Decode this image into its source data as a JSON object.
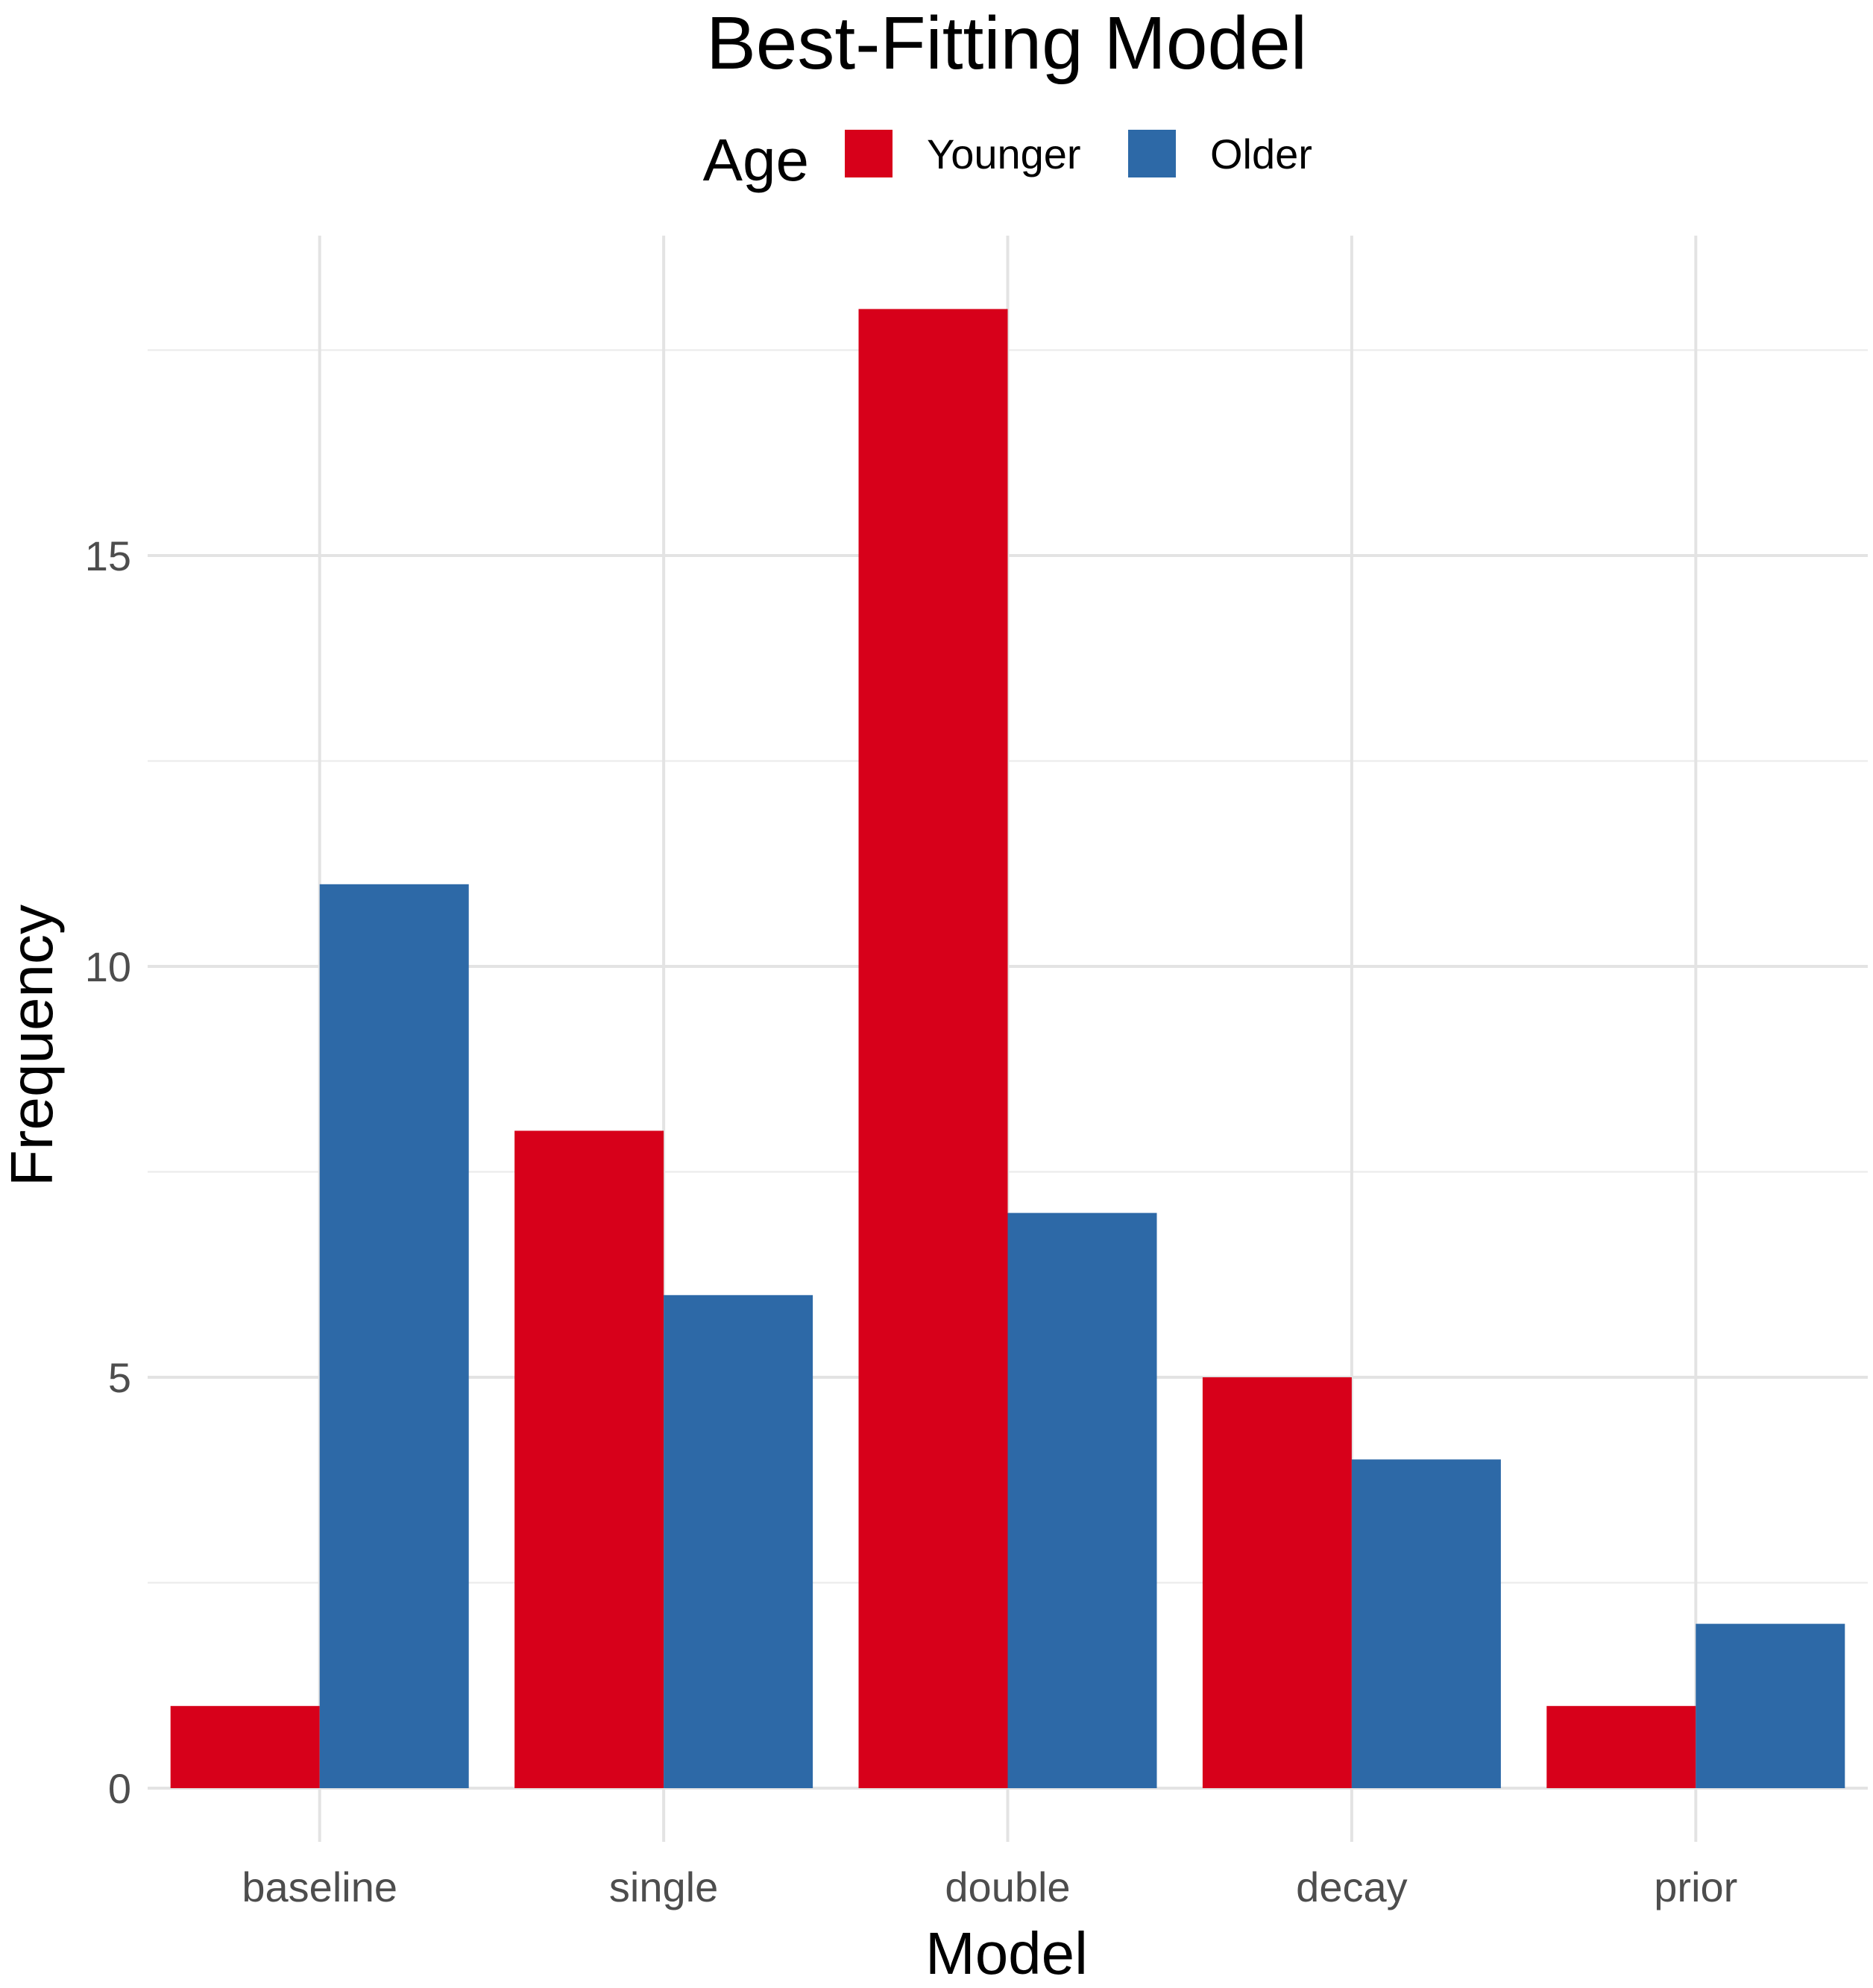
{
  "chart_data": {
    "type": "bar",
    "title": "Best-Fitting Model",
    "xlabel": "Model",
    "ylabel": "Frequency",
    "categories": [
      "baseline",
      "single",
      "double",
      "decay",
      "prior"
    ],
    "series": [
      {
        "name": "Younger",
        "color": "#d7001a",
        "values": [
          1,
          8,
          18,
          5,
          1
        ]
      },
      {
        "name": "Older",
        "color": "#2d69a7",
        "values": [
          11,
          6,
          7,
          4,
          2
        ]
      }
    ],
    "ylim": [
      0,
      18.5
    ],
    "yticks": [
      0,
      5,
      10,
      15
    ],
    "grid": true,
    "legend": {
      "title": "Age",
      "position": "top"
    }
  }
}
